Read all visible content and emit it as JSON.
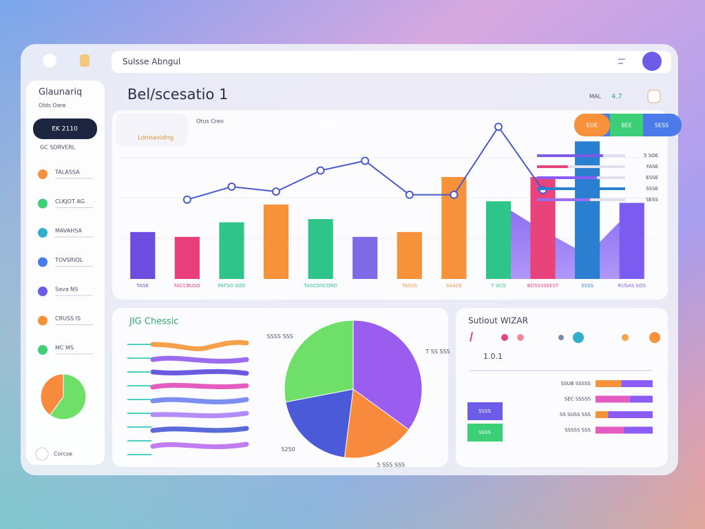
{
  "header": {
    "search": "Sulsse Abngul"
  },
  "sidebar": {
    "title": "Glaunariq",
    "subtitle": "Olds Oare",
    "button": "EK 2110",
    "section": "GC SDRVERL",
    "items": [
      "TALASSA",
      "CLKJOT AG",
      "MAVAHSA",
      "TOVSRIOL",
      "Sava NS",
      "CRUSS IS",
      "MC MS"
    ],
    "footer": "Corcse"
  },
  "page_title": "Bel/scesatio 1",
  "toolbar": [
    "MAL",
    "4.7"
  ],
  "tabs": [
    "EOE",
    "BEE",
    "SESS"
  ],
  "right_panel": {
    "boxes": [
      "SSSS",
      "SSSS"
    ]
  },
  "chart_data": [
    {
      "type": "bar",
      "title": "Otus Creo",
      "subtitle": "Lonnavidng",
      "categories": [
        "TASK",
        "FACCBUSO",
        "PATSO SOD",
        null,
        "TASCOSCORD",
        null,
        "TASSS",
        "SASCE",
        "T SCO",
        "BOSSSSEEST",
        "SSSS",
        "RUSAS SOS"
      ],
      "values": [
        29,
        26,
        35,
        46,
        37,
        26,
        29,
        63,
        48,
        63,
        85,
        47
      ],
      "colors": [
        "#6d4de0",
        "#e83e7a",
        "#2fc48a",
        "#f7913a",
        "#2fc48a",
        "#7c6ae6",
        "#f7913a",
        "#f7913a",
        "#2fc48a",
        "#e8437a",
        "#2b7fd0",
        "#7b5cf0"
      ],
      "ylim": [
        0,
        100
      ],
      "line": {
        "color": "#4a58c8",
        "values": [
          null,
          49,
          57,
          54,
          67,
          73,
          52,
          52,
          94,
          55,
          null,
          null
        ]
      },
      "area": {
        "color": "#8b5cf6",
        "values": [
          null,
          null,
          null,
          null,
          null,
          null,
          null,
          null,
          47,
          30,
          15,
          43
        ]
      }
    },
    {
      "type": "progress",
      "categories": [
        "5 SOE",
        "FASE",
        "ESSE",
        "SSSE",
        "SESS"
      ],
      "values": [
        75,
        35,
        68,
        100,
        60
      ],
      "colors": [
        "#7c5ce6",
        "#e8437a",
        "#8b5cf6",
        "#2b7fd0",
        "#9b6cf0"
      ],
      "xlim": [
        0,
        100
      ]
    },
    {
      "type": "pie",
      "title": "JIG Chessic",
      "categories": [
        "T SS SSS",
        "5 SSS SSS",
        "5250",
        "SSSS SSS"
      ],
      "values": [
        35,
        17,
        20,
        28
      ],
      "colors": [
        "#9b5cf0",
        "#f78a3c",
        "#4b5ad8",
        "#6ee06a"
      ]
    },
    {
      "type": "hbar",
      "title": "Sutiout WIZAR",
      "subtitle": "1.0.1",
      "categories": [
        "SSUB SSSSS",
        "SEC SSSSS",
        "SS SUSS SSS",
        "SSSSS SSS"
      ],
      "xlim": [
        0,
        100
      ],
      "series": [
        {
          "color": "#f7913a",
          "values": [
            45,
            0,
            22,
            0
          ]
        },
        {
          "color": "#e45cc0",
          "values": [
            0,
            60,
            0,
            50
          ]
        },
        {
          "color": "#8b5cf6",
          "values": [
            55,
            40,
            78,
            50
          ]
        }
      ]
    },
    {
      "type": "pie",
      "values": [
        60,
        40
      ],
      "colors": [
        "#6ee06a",
        "#f78a3c"
      ]
    }
  ]
}
